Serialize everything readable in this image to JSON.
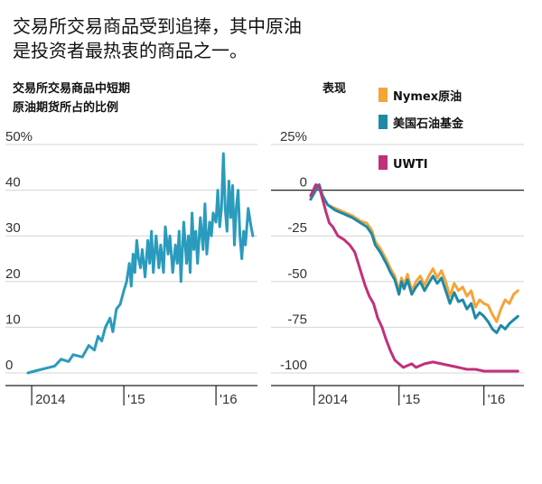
{
  "headline": {
    "line1": "交易所交易商品受到追捧，其中原油",
    "line2": "是投资者最热衷的商品之一。"
  },
  "chart_data": [
    {
      "type": "line",
      "title_line1": "交易所交易商品中短期",
      "title_line2": "原油期货所占的比例",
      "ylim": [
        0,
        50
      ],
      "y_ticks": [
        {
          "value": 50,
          "label": "50%"
        },
        {
          "value": 40,
          "label": "40"
        },
        {
          "value": 30,
          "label": "30"
        },
        {
          "value": 20,
          "label": "20"
        },
        {
          "value": 10,
          "label": "10"
        },
        {
          "value": 0,
          "label": "0"
        }
      ],
      "xlim": [
        2013.95,
        2016.45
      ],
      "x_ticks": [
        {
          "value": 2014.0,
          "label": "2014"
        },
        {
          "value": 2015.0,
          "label": "'15"
        },
        {
          "value": 2016.0,
          "label": "'16"
        }
      ],
      "grid": true,
      "series": [
        {
          "color": "#2a9bbd",
          "x": [
            2013.96,
            2014.05,
            2014.15,
            2014.25,
            2014.32,
            2014.4,
            2014.45,
            2014.55,
            2014.62,
            2014.68,
            2014.72,
            2014.76,
            2014.8,
            2014.85,
            2014.88,
            2014.92,
            2014.96,
            2015.0,
            2015.03,
            2015.06,
            2015.08,
            2015.1,
            2015.12,
            2015.14,
            2015.16,
            2015.18,
            2015.2,
            2015.23,
            2015.26,
            2015.28,
            2015.3,
            2015.32,
            2015.35,
            2015.38,
            2015.4,
            2015.43,
            2015.45,
            2015.48,
            2015.5,
            2015.53,
            2015.56,
            2015.58,
            2015.6,
            2015.62,
            2015.65,
            2015.68,
            2015.7,
            2015.72,
            2015.74,
            2015.76,
            2015.78,
            2015.8,
            2015.83,
            2015.86,
            2015.88,
            2015.9,
            2015.93,
            2015.95,
            2015.97,
            2016.0,
            2016.02,
            2016.04,
            2016.06,
            2016.08,
            2016.1,
            2016.12,
            2016.14,
            2016.16,
            2016.18,
            2016.2,
            2016.22,
            2016.24,
            2016.26,
            2016.28,
            2016.3,
            2016.32,
            2016.35,
            2016.38,
            2016.4
          ],
          "values": [
            0,
            0.5,
            1,
            1.5,
            3,
            2.5,
            4,
            3.5,
            6,
            5,
            8,
            7,
            10,
            12,
            9,
            14,
            15,
            18,
            20,
            24,
            19,
            26,
            22,
            29,
            25,
            23,
            27,
            21,
            29,
            24,
            31,
            22,
            30,
            23,
            28,
            22,
            32,
            26,
            30,
            22,
            28,
            24,
            31,
            20,
            33,
            24,
            30,
            22,
            35,
            27,
            31,
            24,
            34,
            27,
            37,
            26,
            33,
            30,
            35,
            33,
            40,
            32,
            36,
            48,
            36,
            31,
            42,
            34,
            41,
            28,
            36,
            40,
            30,
            25,
            31,
            28,
            36,
            32,
            30
          ]
        }
      ]
    },
    {
      "type": "line",
      "title": "表现",
      "ylim": [
        -100,
        25
      ],
      "y_ticks": [
        {
          "value": 25,
          "label": "25%"
        },
        {
          "value": 0,
          "label": "0"
        },
        {
          "value": -25,
          "label": "-25"
        },
        {
          "value": -50,
          "label": "-50"
        },
        {
          "value": -75,
          "label": "-75"
        },
        {
          "value": -100,
          "label": "-100"
        }
      ],
      "xlim": [
        2013.95,
        2016.45
      ],
      "x_ticks": [
        {
          "value": 2014.0,
          "label": "2014"
        },
        {
          "value": 2015.0,
          "label": "'15"
        },
        {
          "value": 2016.0,
          "label": "'16"
        }
      ],
      "grid": true,
      "legend_position": "top-right",
      "series": [
        {
          "name": "Nymex原油",
          "color": "#f3a538",
          "x": [
            2013.96,
            2014.02,
            2014.06,
            2014.1,
            2014.16,
            2014.25,
            2014.35,
            2014.45,
            2014.55,
            2014.62,
            2014.68,
            2014.72,
            2014.78,
            2014.85,
            2014.9,
            2014.95,
            2015.0,
            2015.03,
            2015.06,
            2015.1,
            2015.15,
            2015.2,
            2015.25,
            2015.3,
            2015.35,
            2015.4,
            2015.45,
            2015.5,
            2015.55,
            2015.6,
            2015.65,
            2015.7,
            2015.75,
            2015.8,
            2015.85,
            2015.9,
            2015.95,
            2016.0,
            2016.05,
            2016.1,
            2016.15,
            2016.2,
            2016.25,
            2016.3,
            2016.35,
            2016.4
          ],
          "values": [
            -5,
            0,
            3,
            -3,
            -8,
            -10,
            -12,
            -14,
            -17,
            -18,
            -22,
            -28,
            -32,
            -38,
            -43,
            -47,
            -55,
            -48,
            -52,
            -46,
            -55,
            -50,
            -47,
            -52,
            -47,
            -43,
            -48,
            -44,
            -50,
            -58,
            -51,
            -55,
            -53,
            -58,
            -55,
            -64,
            -60,
            -62,
            -63,
            -68,
            -72,
            -65,
            -60,
            -62,
            -57,
            -55
          ]
        },
        {
          "name": "美国石油基金",
          "color": "#1e89a7",
          "x": [
            2013.96,
            2014.02,
            2014.06,
            2014.1,
            2014.16,
            2014.25,
            2014.35,
            2014.45,
            2014.55,
            2014.62,
            2014.68,
            2014.72,
            2014.78,
            2014.85,
            2014.9,
            2014.95,
            2015.0,
            2015.03,
            2015.06,
            2015.1,
            2015.15,
            2015.2,
            2015.25,
            2015.3,
            2015.35,
            2015.4,
            2015.45,
            2015.5,
            2015.55,
            2015.6,
            2015.65,
            2015.7,
            2015.75,
            2015.8,
            2015.85,
            2015.9,
            2015.95,
            2016.0,
            2016.05,
            2016.1,
            2016.15,
            2016.2,
            2016.25,
            2016.3,
            2016.35,
            2016.4
          ],
          "values": [
            -5,
            0,
            3,
            -3,
            -8,
            -11,
            -13,
            -15,
            -18,
            -20,
            -24,
            -30,
            -34,
            -40,
            -45,
            -49,
            -57,
            -50,
            -54,
            -49,
            -57,
            -53,
            -50,
            -55,
            -51,
            -47,
            -51,
            -48,
            -55,
            -62,
            -56,
            -61,
            -60,
            -65,
            -62,
            -70,
            -67,
            -69,
            -72,
            -76,
            -78,
            -74,
            -76,
            -73,
            -71,
            -69
          ]
        },
        {
          "name": "UWTI",
          "color": "#c0317b",
          "x": [
            2013.96,
            2014.02,
            2014.06,
            2014.1,
            2014.14,
            2014.18,
            2014.22,
            2014.28,
            2014.35,
            2014.42,
            2014.48,
            2014.52,
            2014.56,
            2014.6,
            2014.65,
            2014.7,
            2014.75,
            2014.8,
            2014.85,
            2014.9,
            2014.95,
            2015.0,
            2015.05,
            2015.1,
            2015.15,
            2015.2,
            2015.3,
            2015.4,
            2015.5,
            2015.6,
            2015.7,
            2015.8,
            2015.9,
            2016.0,
            2016.1,
            2016.2,
            2016.3,
            2016.4
          ],
          "values": [
            -3,
            3,
            2,
            -5,
            -12,
            -18,
            -20,
            -25,
            -27,
            -30,
            -34,
            -40,
            -46,
            -52,
            -58,
            -62,
            -70,
            -75,
            -82,
            -88,
            -93,
            -95,
            -97,
            -96,
            -95,
            -97,
            -95,
            -94,
            -95,
            -96,
            -97,
            -98,
            -98,
            -99,
            -99,
            -99,
            -99,
            -99
          ]
        }
      ]
    }
  ]
}
